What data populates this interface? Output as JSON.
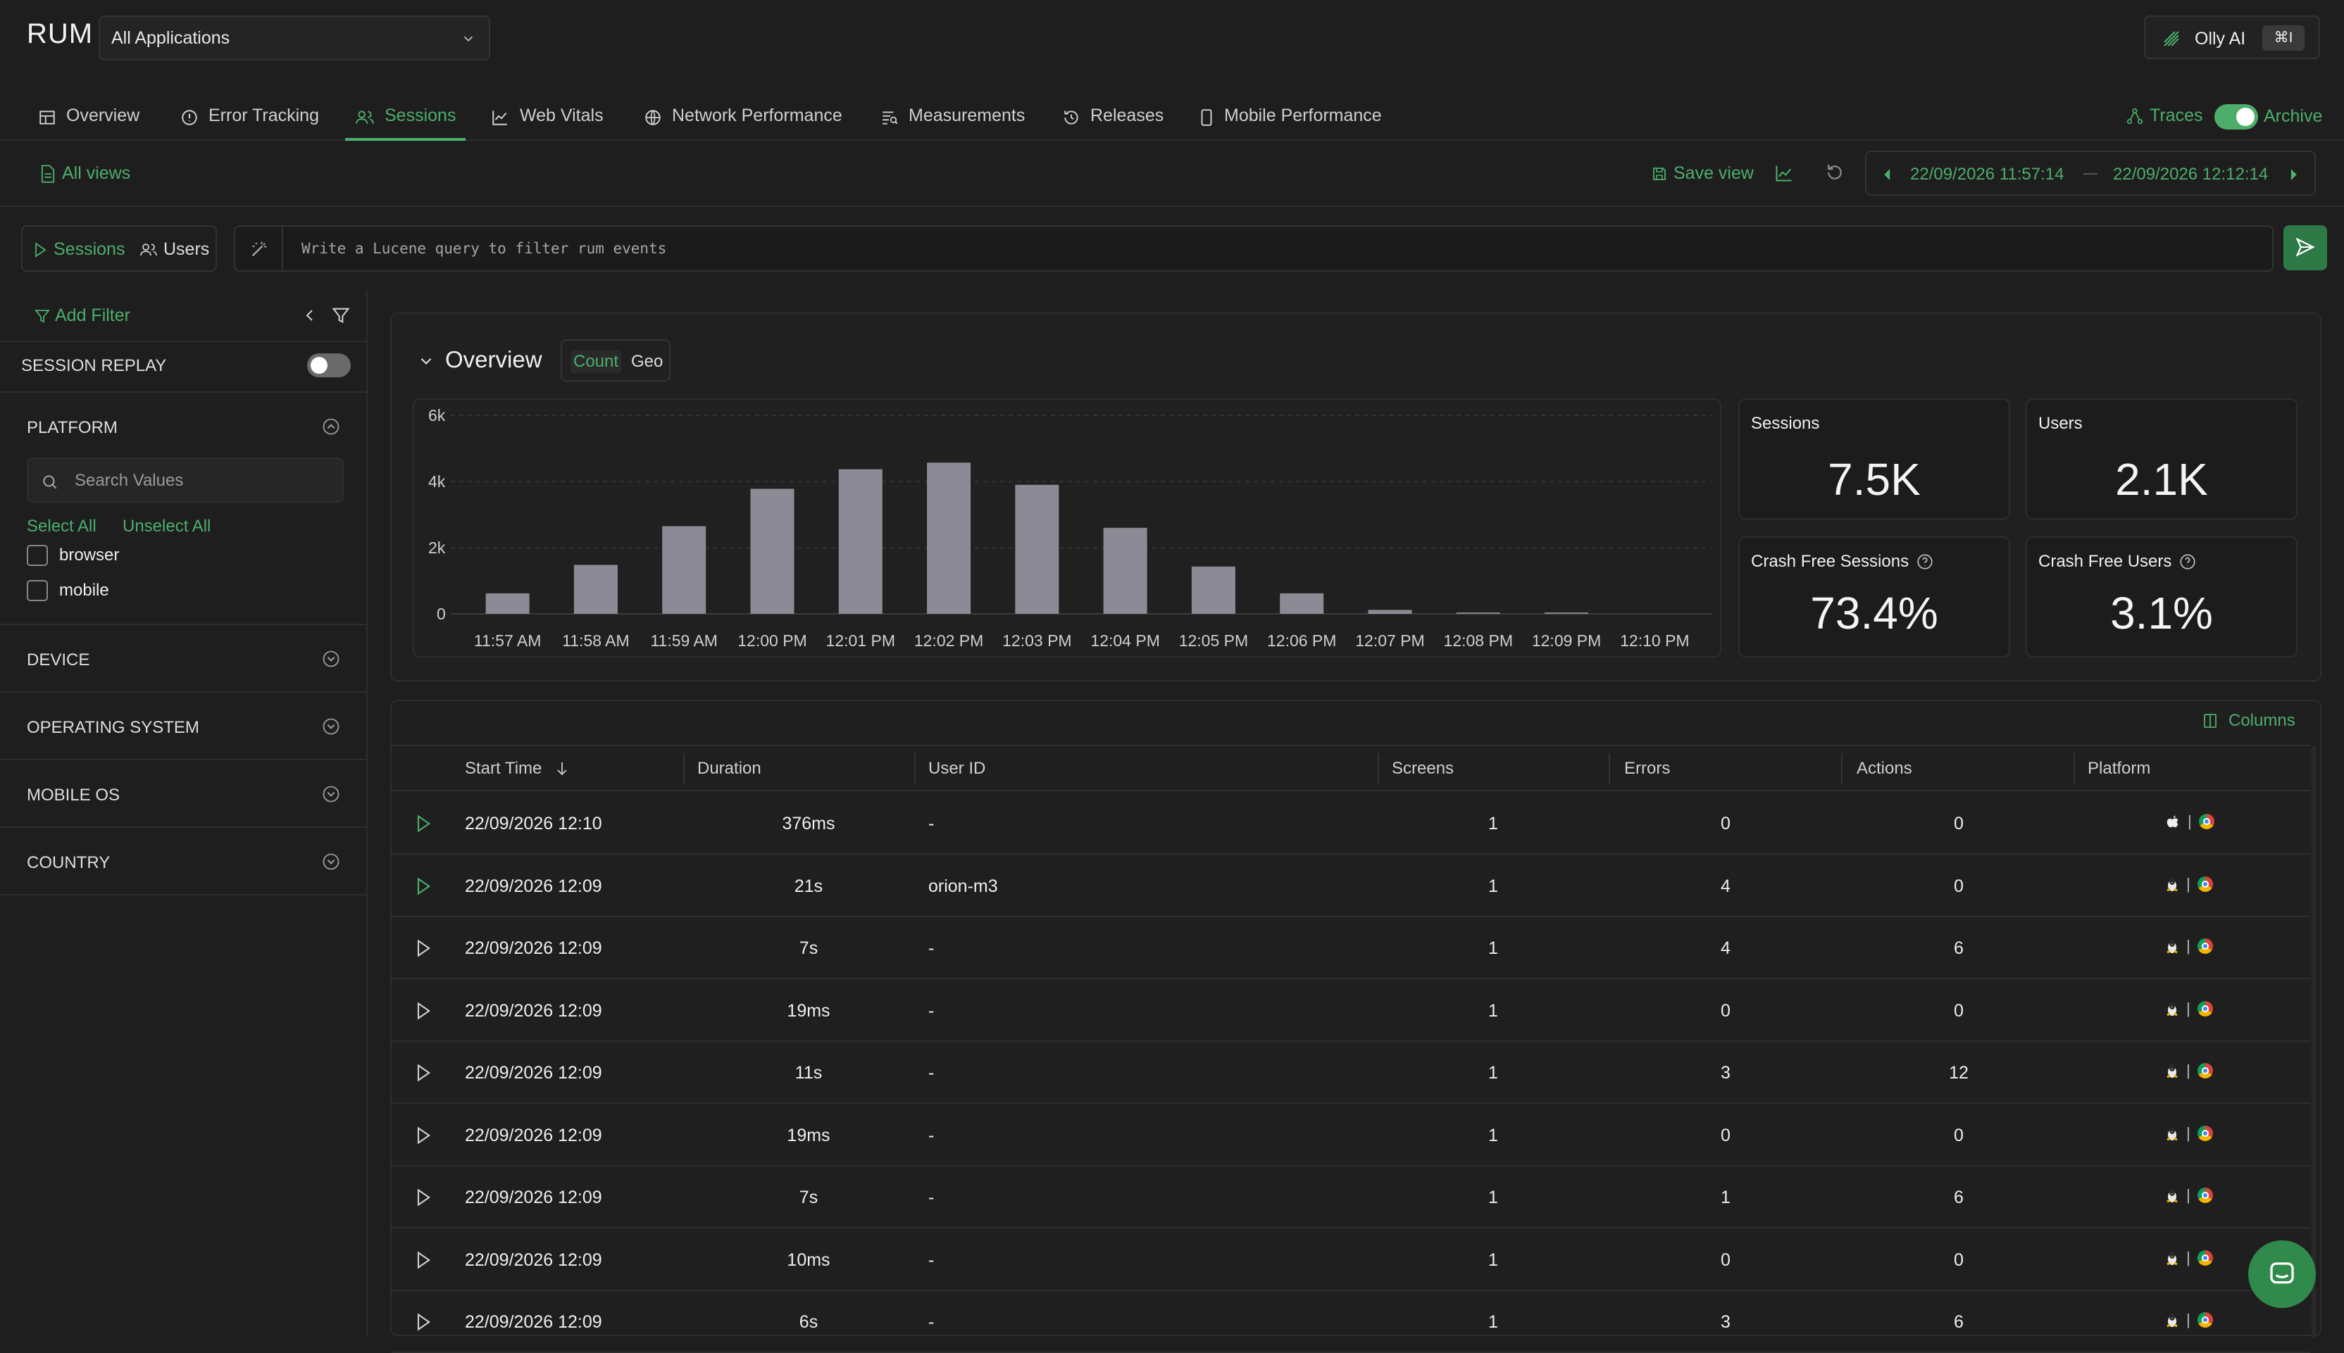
{
  "header": {
    "app_title": "RUM",
    "app_selector": "All Applications",
    "olly": {
      "label": "Olly AI",
      "shortcut": "⌘I"
    }
  },
  "nav": {
    "tabs": [
      {
        "label": "Overview",
        "icon": "layout-icon"
      },
      {
        "label": "Error Tracking",
        "icon": "alert-circle-icon"
      },
      {
        "label": "Sessions",
        "icon": "users-icon"
      },
      {
        "label": "Web Vitals",
        "icon": "line-chart-icon"
      },
      {
        "label": "Network Performance",
        "icon": "globe-icon"
      },
      {
        "label": "Measurements",
        "icon": "measure-icon"
      },
      {
        "label": "Releases",
        "icon": "history-icon"
      },
      {
        "label": "Mobile Performance",
        "icon": "phone-icon"
      }
    ],
    "traces": "Traces",
    "archive": "Archive"
  },
  "toolbar": {
    "all_views": "All views",
    "save_view": "Save view",
    "time_from": "22/09/2026 11:57:14",
    "time_to": "22/09/2026 12:12:14"
  },
  "query": {
    "sessions": "Sessions",
    "users": "Users",
    "placeholder": "Write a Lucene query to filter rum events"
  },
  "sidebar": {
    "add_filter": "Add Filter",
    "session_replay": "SESSION REPLAY",
    "platform": "PLATFORM",
    "search_placeholder": "Search Values",
    "select_all": "Select All",
    "unselect_all": "Unselect All",
    "options": [
      "browser",
      "mobile"
    ],
    "facets": [
      "DEVICE",
      "OPERATING SYSTEM",
      "MOBILE OS",
      "COUNTRY"
    ]
  },
  "overview": {
    "title": "Overview",
    "count": "Count",
    "geo": "Geo",
    "kpis": [
      {
        "label": "Sessions",
        "value": "7.5K"
      },
      {
        "label": "Users",
        "value": "2.1K"
      },
      {
        "label": "Crash Free Sessions",
        "value": "73.4%"
      },
      {
        "label": "Crash Free Users",
        "value": "3.1%"
      }
    ]
  },
  "chart_data": {
    "type": "bar",
    "categories": [
      "11:57 AM",
      "11:58 AM",
      "11:59 AM",
      "12:00 PM",
      "12:01 PM",
      "12:02 PM",
      "12:03 PM",
      "12:04 PM",
      "12:05 PM",
      "12:06 PM",
      "12:07 PM",
      "12:08 PM",
      "12:09 PM",
      "12:10 PM"
    ],
    "values": [
      620,
      1480,
      2650,
      3780,
      4370,
      4570,
      3900,
      2600,
      1430,
      620,
      120,
      40,
      40,
      0
    ],
    "yticks": [
      "0",
      "2k",
      "4k",
      "6k"
    ],
    "ylim": [
      0,
      6000
    ],
    "grid": true,
    "bar_color": "#8c8a94"
  },
  "table": {
    "columns_btn": "Columns",
    "headers": [
      "Start Time",
      "Duration",
      "User ID",
      "Screens",
      "Errors",
      "Actions",
      "Platform"
    ],
    "rows": [
      {
        "start": "22/09/2026 12:10",
        "duration": "376ms",
        "user": "-",
        "screens": "1",
        "errors": "0",
        "actions": "0",
        "os": "apple-icon",
        "sep": "|",
        "browser": "chrome-icon",
        "playing": true
      },
      {
        "start": "22/09/2026 12:09",
        "duration": "21s",
        "user": "orion-m3",
        "screens": "1",
        "errors": "4",
        "actions": "0",
        "os": "linux-icon",
        "sep": "|",
        "browser": "chrome-icon",
        "playing": true
      },
      {
        "start": "22/09/2026 12:09",
        "duration": "7s",
        "user": "-",
        "screens": "1",
        "errors": "4",
        "actions": "6",
        "os": "linux-icon",
        "sep": "|",
        "browser": "chrome-icon",
        "playing": false
      },
      {
        "start": "22/09/2026 12:09",
        "duration": "19ms",
        "user": "-",
        "screens": "1",
        "errors": "0",
        "actions": "0",
        "os": "linux-icon",
        "sep": "|",
        "browser": "chrome-icon",
        "playing": false
      },
      {
        "start": "22/09/2026 12:09",
        "duration": "11s",
        "user": "-",
        "screens": "1",
        "errors": "3",
        "actions": "12",
        "os": "linux-icon",
        "sep": "|",
        "browser": "chrome-icon",
        "playing": false
      },
      {
        "start": "22/09/2026 12:09",
        "duration": "19ms",
        "user": "-",
        "screens": "1",
        "errors": "0",
        "actions": "0",
        "os": "linux-icon",
        "sep": "|",
        "browser": "chrome-icon",
        "playing": false
      },
      {
        "start": "22/09/2026 12:09",
        "duration": "7s",
        "user": "-",
        "screens": "1",
        "errors": "1",
        "actions": "6",
        "os": "linux-icon",
        "sep": "|",
        "browser": "chrome-icon",
        "playing": false
      },
      {
        "start": "22/09/2026 12:09",
        "duration": "10ms",
        "user": "-",
        "screens": "1",
        "errors": "0",
        "actions": "0",
        "os": "linux-icon",
        "sep": "|",
        "browser": "chrome-icon",
        "playing": false
      },
      {
        "start": "22/09/2026 12:09",
        "duration": "6s",
        "user": "-",
        "screens": "1",
        "errors": "3",
        "actions": "6",
        "os": "linux-icon",
        "sep": "|",
        "browser": "chrome-icon",
        "playing": false
      }
    ]
  }
}
